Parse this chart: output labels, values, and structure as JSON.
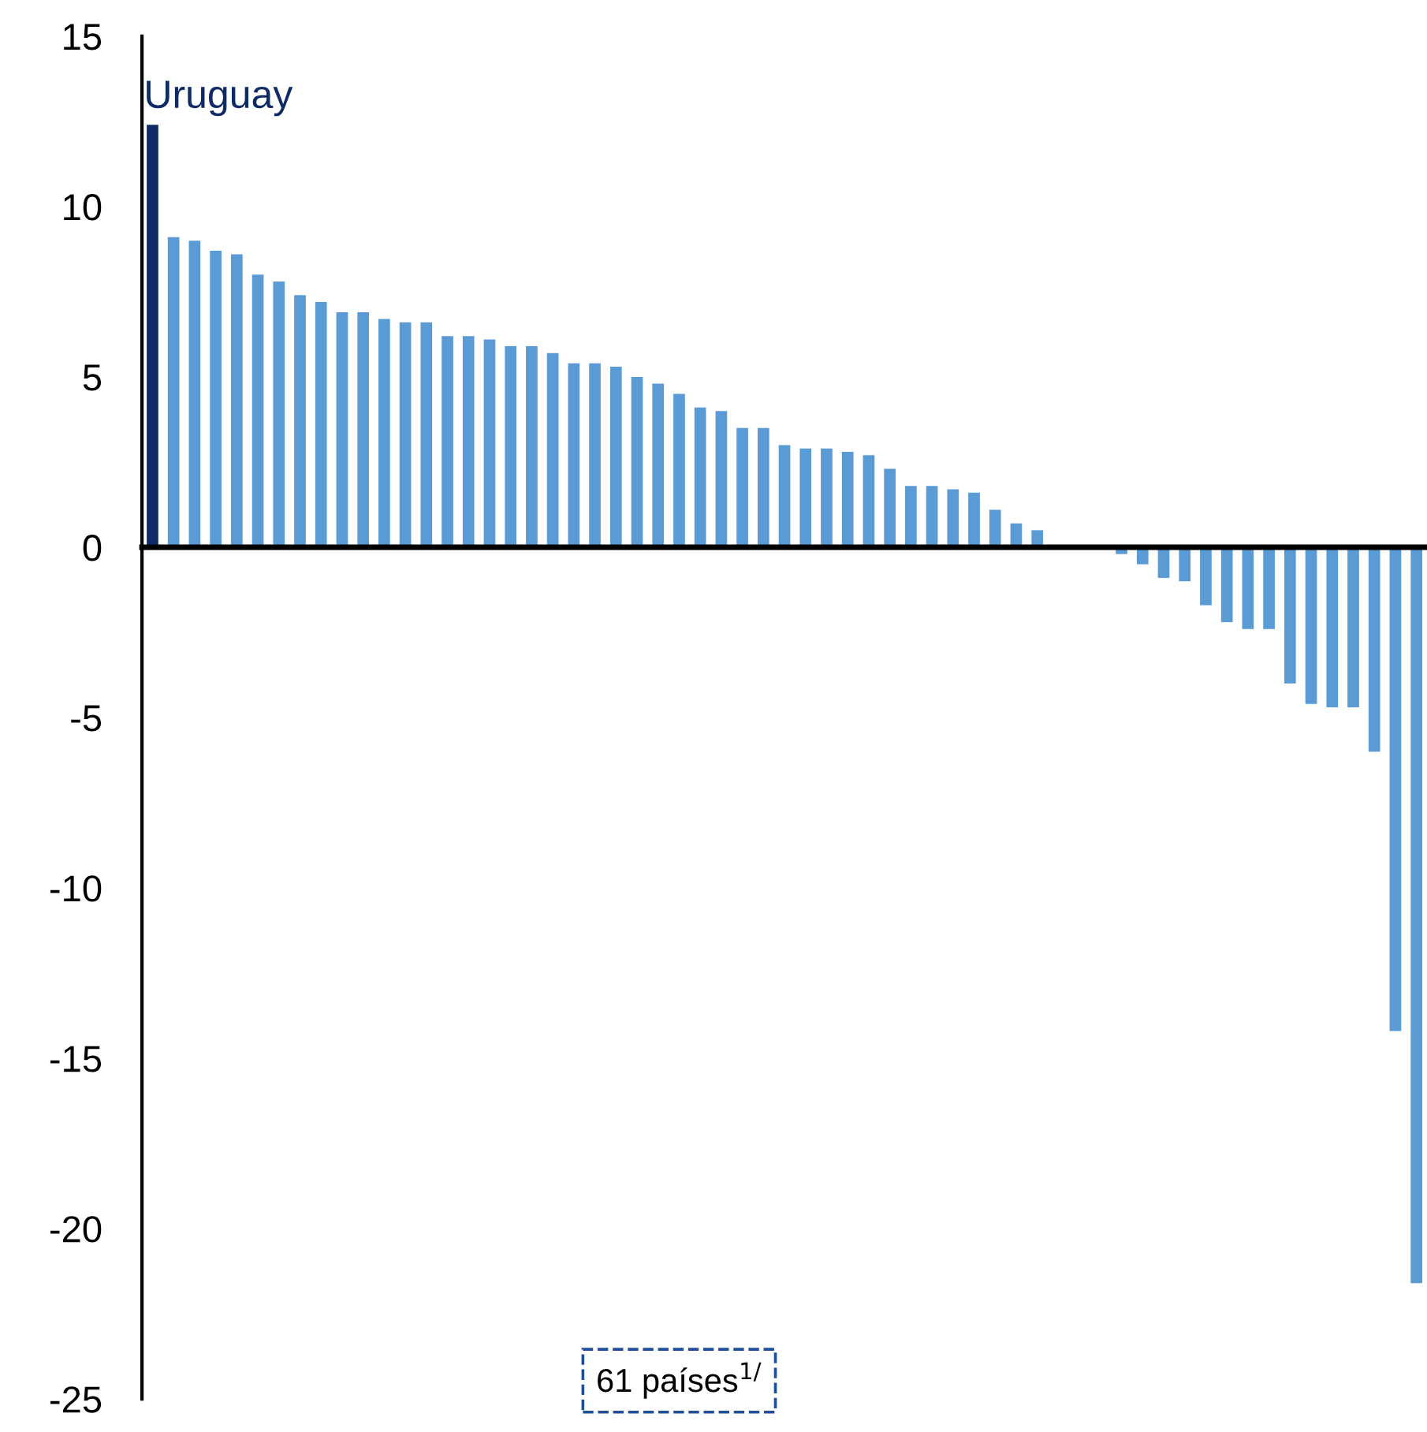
{
  "chart_data": {
    "type": "bar",
    "categories": [
      null,
      null,
      null,
      null,
      null,
      null,
      null,
      null,
      null,
      null,
      null,
      null,
      null,
      null,
      null,
      null,
      null,
      null,
      null,
      null,
      null,
      null,
      null,
      null,
      null,
      null,
      null,
      null,
      null,
      null,
      null,
      null,
      null,
      null,
      null,
      null,
      null,
      null,
      null,
      null,
      null,
      null,
      null,
      null,
      null,
      null,
      null,
      null,
      null,
      null,
      null,
      null,
      null,
      null,
      null,
      null,
      null,
      null,
      null,
      null,
      null
    ],
    "values": [
      12.4,
      9.1,
      9.0,
      8.7,
      8.6,
      8.0,
      7.8,
      7.4,
      7.2,
      6.9,
      6.9,
      6.7,
      6.6,
      6.6,
      6.2,
      6.2,
      6.1,
      5.9,
      5.9,
      5.7,
      5.4,
      5.4,
      5.3,
      5.0,
      4.8,
      4.5,
      4.1,
      4.0,
      3.5,
      3.5,
      3.0,
      2.9,
      2.9,
      2.8,
      2.7,
      2.3,
      1.8,
      1.8,
      1.7,
      1.6,
      1.1,
      0.7,
      0.5,
      0,
      0,
      0,
      -0.2,
      -0.5,
      -0.9,
      -1.0,
      -1.7,
      -2.2,
      -2.4,
      -2.4,
      -4.0,
      -4.6,
      -4.7,
      -4.7,
      -6.0,
      -14.2,
      -21.6
    ],
    "colors": [
      "#0f2b66",
      "#5b9bd5",
      "#5b9bd5",
      "#5b9bd5",
      "#5b9bd5",
      "#5b9bd5",
      "#5b9bd5",
      "#5b9bd5",
      "#5b9bd5",
      "#5b9bd5",
      "#5b9bd5",
      "#5b9bd5",
      "#5b9bd5",
      "#5b9bd5",
      "#5b9bd5",
      "#5b9bd5",
      "#5b9bd5",
      "#5b9bd5",
      "#5b9bd5",
      "#5b9bd5",
      "#5b9bd5",
      "#5b9bd5",
      "#5b9bd5",
      "#5b9bd5",
      "#5b9bd5",
      "#5b9bd5",
      "#5b9bd5",
      "#5b9bd5",
      "#5b9bd5",
      "#5b9bd5",
      "#5b9bd5",
      "#5b9bd5",
      "#5b9bd5",
      "#5b9bd5",
      "#5b9bd5",
      "#5b9bd5",
      "#5b9bd5",
      "#5b9bd5",
      "#5b9bd5",
      "#5b9bd5",
      "#5b9bd5",
      "#5b9bd5",
      "#5b9bd5",
      "#5b9bd5",
      "#5b9bd5",
      "#5b9bd5",
      "#5b9bd5",
      "#5b9bd5",
      "#5b9bd5",
      "#5b9bd5",
      "#5b9bd5",
      "#5b9bd5",
      "#5b9bd5",
      "#5b9bd5",
      "#5b9bd5",
      "#5b9bd5",
      "#5b9bd5",
      "#5b9bd5",
      "#5b9bd5",
      "#5b9bd5",
      "#5b9bd5"
    ],
    "ylim": [
      -25,
      15
    ],
    "yticks": [
      -25,
      -20,
      -15,
      -10,
      -5,
      0,
      5,
      10,
      15
    ],
    "tick_labels": "y",
    "annotations": [
      "Uruguay",
      "61 países$^{1/}$"
    ]
  }
}
